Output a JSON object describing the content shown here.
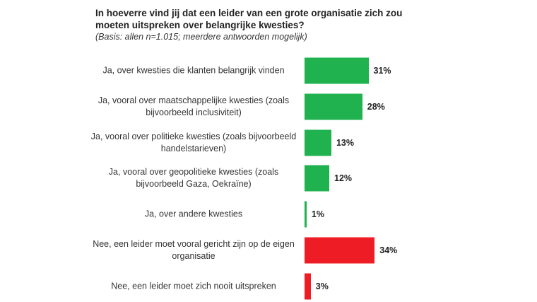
{
  "chart_data": {
    "type": "bar",
    "orientation": "horizontal",
    "title": "In hoeverre vind jij dat een leider van een grote organisatie zich zou moeten uitspreken over belangrijke kwesties?",
    "subtitle": "(Basis: allen n=1.015; meerdere antwoorden mogelijk)",
    "categories": [
      "Ja, over kwesties die klanten belangrijk vinden",
      "Ja, vooral over maatschappelijke kwesties (zoals bijvoorbeeld inclusiviteit)",
      "Ja, vooral over politieke kwesties (zoals bijvoorbeeld handelstarieven)",
      "Ja, vooral over geopolitieke kwesties (zoals bijvoorbeeld Gaza, Oekraïne)",
      "Ja, over andere kwesties",
      "Nee, een leider moet vooral gericht zijn op de eigen organisatie",
      "Nee, een leider moet zich nooit uitspreken"
    ],
    "values": [
      31,
      28,
      13,
      12,
      1,
      34,
      3
    ],
    "value_labels": [
      "31%",
      "28%",
      "13%",
      "12%",
      "1%",
      "34%",
      "3%"
    ],
    "colors": [
      "#1fb24f",
      "#1fb24f",
      "#1fb24f",
      "#1fb24f",
      "#1fb24f",
      "#ee1c25",
      "#ee1c25"
    ]
  }
}
